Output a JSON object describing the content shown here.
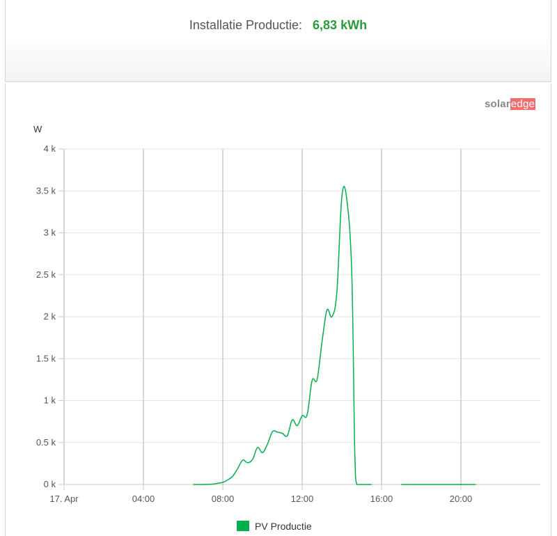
{
  "header": {
    "label": "Installatie Productie:",
    "value": "6,83 kWh"
  },
  "logo": {
    "part1": "solar",
    "part2": "edge"
  },
  "colors": {
    "series": "#00b050",
    "value_text": "#2a9a3a",
    "grid": "#d6d6d6"
  },
  "chart_data": {
    "type": "line",
    "title": "",
    "xlabel": "",
    "ylabel": "W",
    "xlim": [
      0,
      24
    ],
    "ylim": [
      0,
      4000
    ],
    "y_ticks": [
      {
        "value": 0,
        "label": "0 k"
      },
      {
        "value": 500,
        "label": "0.5 k"
      },
      {
        "value": 1000,
        "label": "1 k"
      },
      {
        "value": 1500,
        "label": "1.5 k"
      },
      {
        "value": 2000,
        "label": "2 k"
      },
      {
        "value": 2500,
        "label": "2.5 k"
      },
      {
        "value": 3000,
        "label": "3 k"
      },
      {
        "value": 3500,
        "label": "3.5 k"
      },
      {
        "value": 4000,
        "label": "4 k"
      }
    ],
    "x_ticks": [
      {
        "value": 0,
        "label": "17. Apr"
      },
      {
        "value": 4,
        "label": "04:00"
      },
      {
        "value": 8,
        "label": "08:00"
      },
      {
        "value": 12,
        "label": "12:00"
      },
      {
        "value": 16,
        "label": "16:00"
      },
      {
        "value": 20,
        "label": "20:00"
      }
    ],
    "grid": true,
    "legend_position": "bottom-center",
    "series": [
      {
        "name": "PV Productie",
        "segments": [
          [
            [
              6.5,
              0
            ],
            [
              7.0,
              0
            ],
            [
              7.5,
              5
            ],
            [
              7.75,
              15
            ],
            [
              8.0,
              25
            ],
            [
              8.25,
              55
            ],
            [
              8.5,
              100
            ],
            [
              8.75,
              190
            ],
            [
              9.0,
              290
            ],
            [
              9.25,
              260
            ],
            [
              9.5,
              300
            ],
            [
              9.75,
              440
            ],
            [
              10.0,
              380
            ],
            [
              10.25,
              480
            ],
            [
              10.5,
              630
            ],
            [
              10.75,
              625
            ],
            [
              11.0,
              610
            ],
            [
              11.25,
              580
            ],
            [
              11.5,
              770
            ],
            [
              11.75,
              700
            ],
            [
              12.0,
              820
            ],
            [
              12.25,
              830
            ],
            [
              12.5,
              1240
            ],
            [
              12.75,
              1250
            ],
            [
              13.0,
              1700
            ],
            [
              13.25,
              2080
            ],
            [
              13.5,
              2000
            ],
            [
              13.75,
              2300
            ],
            [
              14.0,
              3430
            ],
            [
              14.25,
              3400
            ],
            [
              14.5,
              2500
            ],
            [
              14.65,
              400
            ],
            [
              14.75,
              0
            ],
            [
              15.0,
              0
            ],
            [
              15.5,
              0
            ]
          ],
          [
            [
              17.0,
              0
            ],
            [
              18.0,
              0
            ],
            [
              19.0,
              0
            ],
            [
              20.0,
              0
            ],
            [
              20.75,
              0
            ]
          ]
        ]
      }
    ]
  }
}
